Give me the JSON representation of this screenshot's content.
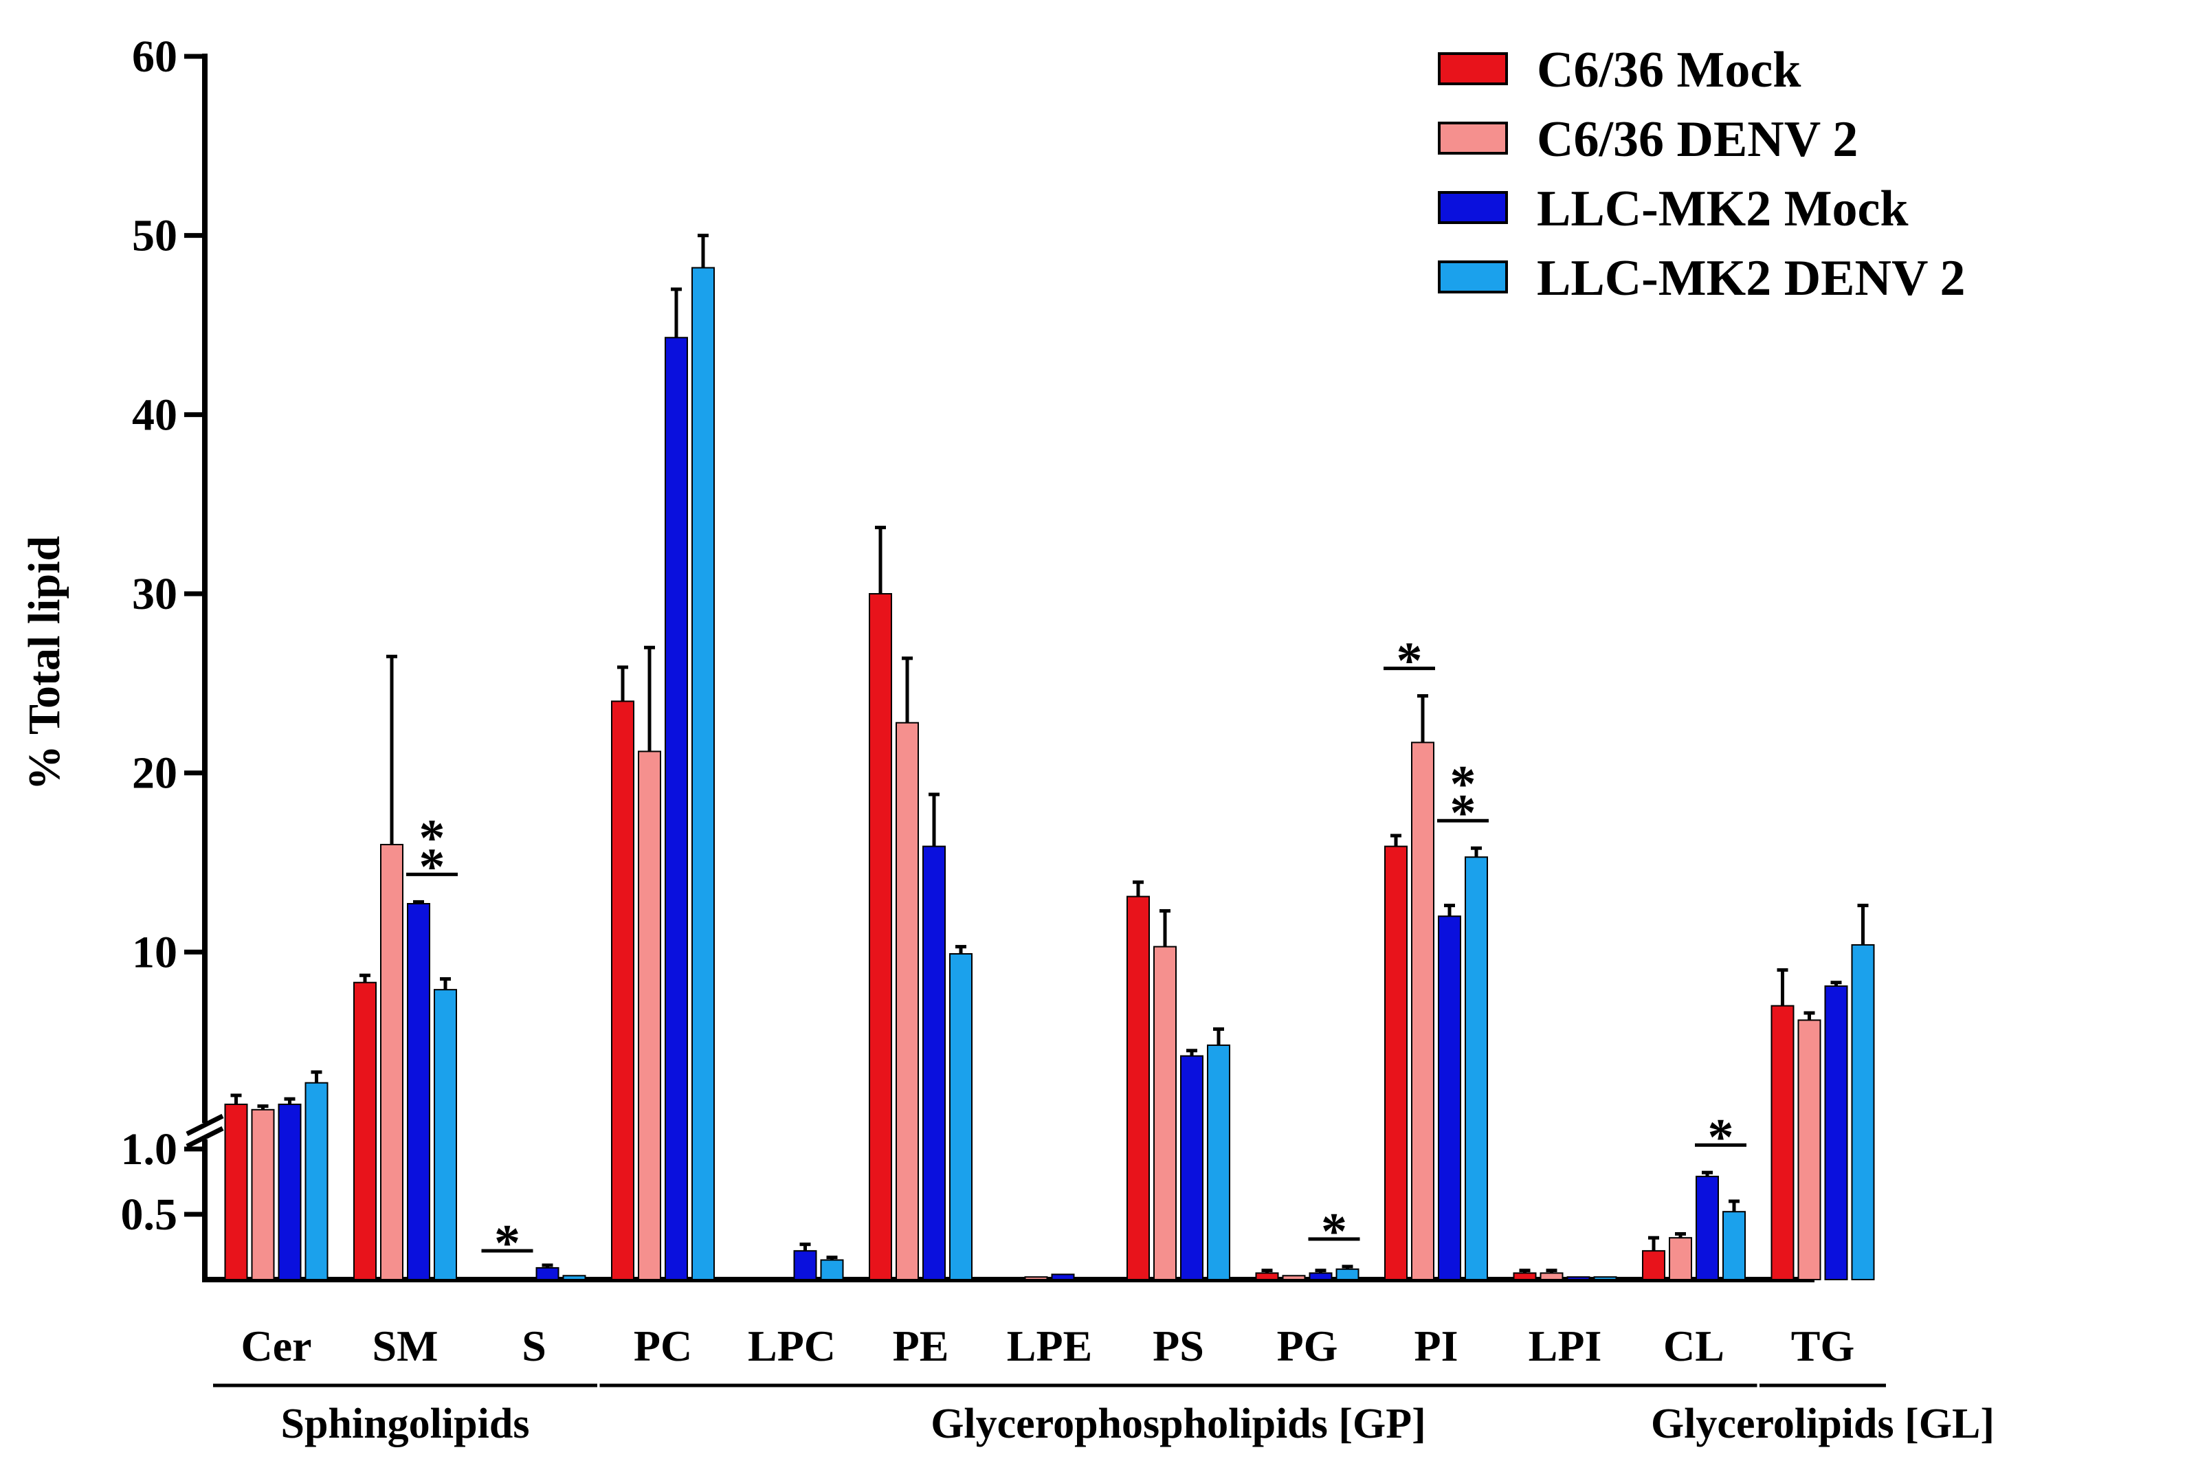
{
  "chart_data": {
    "type": "bar",
    "ylabel": "% Total lipid",
    "xlabel": "",
    "title": "",
    "y_axis": {
      "broken": true,
      "lower_range": [
        0,
        1.0
      ],
      "lower_ticks": [
        "0.5",
        "1.0"
      ],
      "upper_range": [
        1.0,
        60
      ],
      "upper_ticks": [
        "10",
        "20",
        "30",
        "40",
        "50",
        "60"
      ]
    },
    "legend_position": "top-right",
    "categories": [
      "Cer",
      "SM",
      "S",
      "PC",
      "LPC",
      "PE",
      "LPE",
      "PS",
      "PG",
      "PI",
      "LPI",
      "CL",
      "TG"
    ],
    "series": [
      {
        "name": "C6/36 Mock",
        "color": "#e8131b",
        "values": [
          1.5,
          8.3,
          0.01,
          24.0,
          0.01,
          30.0,
          0.01,
          13.1,
          0.05,
          15.9,
          0.05,
          0.22,
          7.0
        ],
        "errors": [
          0.5,
          0.4,
          0.0,
          1.9,
          0.0,
          3.7,
          0.0,
          0.8,
          0.02,
          0.6,
          0.02,
          0.1,
          2.0
        ]
      },
      {
        "name": "C6/36 DENV 2",
        "color": "#f5908e",
        "values": [
          1.2,
          16.0,
          0.01,
          21.2,
          0.01,
          22.8,
          0.02,
          10.3,
          0.03,
          21.7,
          0.05,
          0.32,
          6.2
        ],
        "errors": [
          0.2,
          10.5,
          0.0,
          5.8,
          0.0,
          3.6,
          0.0,
          2.0,
          0.0,
          2.6,
          0.02,
          0.03,
          0.4
        ]
      },
      {
        "name": "LLC-MK2 Mock",
        "color": "#0a10dd",
        "values": [
          1.5,
          12.7,
          0.09,
          44.3,
          0.22,
          15.9,
          0.04,
          4.2,
          0.05,
          12.0,
          0.02,
          0.79,
          8.1
        ],
        "errors": [
          0.3,
          0.1,
          0.02,
          2.7,
          0.05,
          2.9,
          0.0,
          0.3,
          0.02,
          0.6,
          0.0,
          0.03,
          0.2
        ]
      },
      {
        "name": "LLC-MK2 DENV 2",
        "color": "#1ba1ec",
        "values": [
          2.7,
          7.9,
          0.03,
          48.2,
          0.15,
          9.9,
          0.01,
          4.8,
          0.08,
          15.3,
          0.02,
          0.52,
          10.4
        ],
        "errors": [
          0.6,
          0.6,
          0.0,
          1.8,
          0.02,
          0.4,
          0.0,
          0.9,
          0.02,
          0.5,
          0.0,
          0.08,
          2.2
        ]
      }
    ],
    "significance": [
      {
        "category": "SM",
        "series": [
          2,
          3
        ],
        "label": "**"
      },
      {
        "category": "S",
        "series": [
          0,
          1
        ],
        "label": "*"
      },
      {
        "category": "PG",
        "series": [
          2,
          3
        ],
        "label": "*"
      },
      {
        "category": "PI",
        "series": [
          0,
          1
        ],
        "label": "*"
      },
      {
        "category": "PI",
        "series": [
          2,
          3
        ],
        "label": "**"
      },
      {
        "category": "CL",
        "series": [
          2,
          3
        ],
        "label": "*"
      }
    ],
    "groups": [
      {
        "name": "Sphingolipids",
        "categories": [
          "Cer",
          "SM",
          "S"
        ]
      },
      {
        "name": "Glycerophospholipids [GP]",
        "categories": [
          "PC",
          "LPC",
          "PE",
          "LPE",
          "PS",
          "PG",
          "PI",
          "LPI",
          "CL"
        ]
      },
      {
        "name": "Glycerolipids [GL]",
        "categories": [
          "TG"
        ]
      }
    ]
  }
}
